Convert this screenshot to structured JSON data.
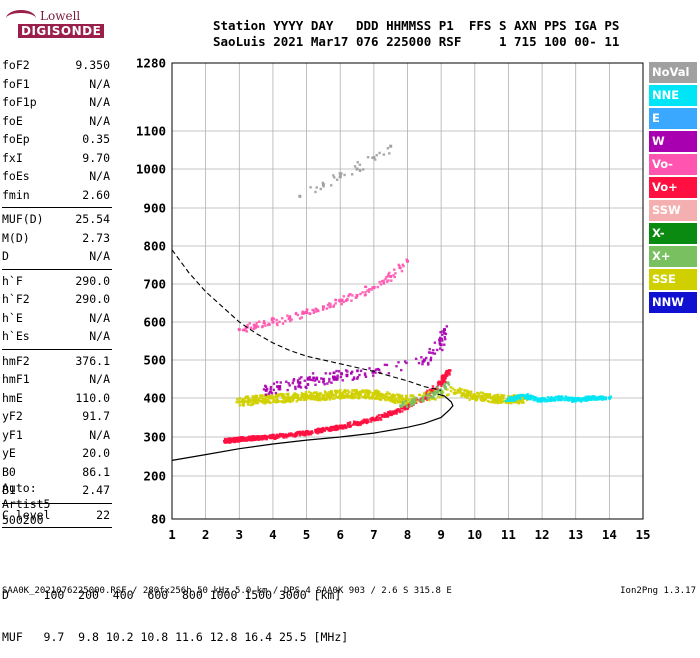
{
  "logo": {
    "line1": "Lowell",
    "line2": "DIGISONDE"
  },
  "header": {
    "labels": "Station YYYY DAY   DDD HHMMSS P1  FFS S AXN PPS IGA PS",
    "values": "SaoLuis 2021 Mar17 076 225000 RSF     1 715 100 00- 11"
  },
  "params": {
    "group1": [
      {
        "k": "foF2",
        "v": "9.350"
      },
      {
        "k": "foF1",
        "v": "N/A"
      },
      {
        "k": "foF1p",
        "v": "N/A"
      },
      {
        "k": "foE",
        "v": "N/A"
      },
      {
        "k": "foEp",
        "v": "0.35"
      },
      {
        "k": "fxI",
        "v": "9.70"
      },
      {
        "k": "foEs",
        "v": "N/A"
      },
      {
        "k": "fmin",
        "v": "2.60"
      }
    ],
    "group2": [
      {
        "k": "MUF(D)",
        "v": "25.54"
      },
      {
        "k": "M(D)",
        "v": "2.73"
      },
      {
        "k": "D",
        "v": "N/A"
      }
    ],
    "group3": [
      {
        "k": "h`F",
        "v": "290.0"
      },
      {
        "k": "h`F2",
        "v": "290.0"
      },
      {
        "k": "h`E",
        "v": "N/A"
      },
      {
        "k": "h`Es",
        "v": "N/A"
      }
    ],
    "group4": [
      {
        "k": "hmF2",
        "v": "376.1"
      },
      {
        "k": "hmF1",
        "v": "N/A"
      },
      {
        "k": "hmE",
        "v": "110.0"
      },
      {
        "k": "yF2",
        "v": "91.7"
      },
      {
        "k": "yF1",
        "v": "N/A"
      },
      {
        "k": "yE",
        "v": "20.0"
      },
      {
        "k": "B0",
        "v": "86.1"
      },
      {
        "k": "B1",
        "v": "2.47"
      }
    ],
    "group5": [
      {
        "k": "C-level",
        "v": "22"
      }
    ]
  },
  "autoscale": {
    "line1": "Auto:",
    "line2": "Artist5",
    "line3": "500200"
  },
  "legend": [
    {
      "label": "NoVal",
      "color": "#a0a0a0"
    },
    {
      "label": "NNE",
      "color": "#00e5f5"
    },
    {
      "label": "E",
      "color": "#3aa8ff"
    },
    {
      "label": "W",
      "color": "#a800b0"
    },
    {
      "label": "Vo-",
      "color": "#ff55b0"
    },
    {
      "label": "Vo+",
      "color": "#ff1040"
    },
    {
      "label": "SSW",
      "color": "#f4b0b0"
    },
    {
      "label": "X-",
      "color": "#0a8a10"
    },
    {
      "label": "X+",
      "color": "#78c060"
    },
    {
      "label": "SSE",
      "color": "#d0d000"
    },
    {
      "label": "NNW",
      "color": "#1010d0"
    }
  ],
  "bottom": {
    "d_row": "D     100  200  400  600  800 1000 1500 3000 [km]",
    "muf_row": "MUF   9.7  9.8 10.2 10.8 11.6 12.8 16.4 25.5 [MHz]"
  },
  "footer": {
    "left": "SAA0K_2021076225000.RSF / 280fx256h 50 kHz 5.0 km / DPS-4 SAA0K 903 / 2.6 S 315.8 E",
    "right": "Ion2Png 1.3.17"
  },
  "chart_data": {
    "type": "scatter",
    "title": "",
    "xlabel": "",
    "ylabel": "",
    "xlim": [
      1,
      15
    ],
    "ylim": [
      80,
      1280
    ],
    "y_scale": "ionogram (linear to 400 km, compressed above)",
    "x_ticks": [
      1,
      2,
      3,
      4,
      5,
      6,
      7,
      8,
      9,
      10,
      11,
      12,
      13,
      14,
      15
    ],
    "y_ticks": [
      80,
      200,
      300,
      400,
      500,
      600,
      700,
      800,
      900,
      1000,
      1100,
      1280
    ],
    "grid": true,
    "legend_position": "right",
    "series": [
      {
        "legend": "Vo+",
        "color": "#ff1040",
        "x": [
          2.6,
          2.8,
          3.0,
          3.3,
          3.6,
          4.0,
          4.5,
          5.0,
          5.5,
          6.0,
          6.5,
          7.0,
          7.5,
          8.0,
          8.5,
          9.0,
          9.2
        ],
        "y": [
          290,
          292,
          294,
          296,
          298,
          300,
          305,
          310,
          318,
          325,
          335,
          345,
          360,
          378,
          400,
          440,
          470
        ]
      },
      {
        "legend": "SSE",
        "color": "#d0d000",
        "x": [
          3.0,
          3.5,
          4.0,
          4.5,
          5.0,
          5.5,
          6.0,
          6.5,
          7.0,
          7.5,
          8.0,
          9.5,
          10.0,
          10.5,
          11.0,
          11.5
        ],
        "y": [
          390,
          395,
          400,
          400,
          405,
          405,
          410,
          410,
          410,
          400,
          395,
          420,
          405,
          400,
          395,
          400
        ]
      },
      {
        "legend": "NNE",
        "color": "#00e5f5",
        "x": [
          11.0,
          11.5,
          12.0,
          12.5,
          13.0,
          13.5,
          14.0
        ],
        "y": [
          395,
          405,
          395,
          400,
          395,
          400,
          400
        ]
      },
      {
        "legend": "W",
        "color": "#a800b0",
        "x": [
          3.8,
          4.2,
          4.8,
          5.3,
          5.8,
          6.2,
          7.0,
          8.5,
          9.0,
          9.1
        ],
        "y": [
          420,
          430,
          440,
          450,
          455,
          460,
          470,
          500,
          540,
          580
        ]
      },
      {
        "legend": "Vo-",
        "color": "#ff55b0",
        "x": [
          3.0,
          3.5,
          4.0,
          4.5,
          5.0,
          5.5,
          6.0,
          6.5,
          7.0,
          7.5,
          8.0
        ],
        "y": [
          580,
          590,
          600,
          610,
          625,
          640,
          655,
          670,
          690,
          720,
          760
        ]
      },
      {
        "legend": "X+",
        "color": "#78c060",
        "x": [
          7.8,
          8.2,
          8.8,
          9.2
        ],
        "y": [
          380,
          390,
          410,
          440
        ]
      },
      {
        "legend": "NoVal",
        "color": "#a0a0a0",
        "x": [
          4.8,
          5.5,
          6.0,
          6.5,
          7.0,
          7.5
        ],
        "y": [
          930,
          960,
          980,
          1000,
          1030,
          1060
        ]
      }
    ],
    "profile_solid": {
      "x": [
        1.0,
        2.0,
        3.0,
        4.0,
        5.0,
        6.0,
        7.0,
        8.0,
        8.5,
        9.0,
        9.25,
        9.35,
        9.3,
        9.1,
        8.9
      ],
      "y": [
        240,
        255,
        270,
        282,
        292,
        300,
        310,
        325,
        335,
        350,
        370,
        380,
        390,
        405,
        410
      ]
    },
    "profile_dashed": {
      "x": [
        1.0,
        1.5,
        2.0,
        2.5,
        3.0,
        3.5,
        4.0,
        4.5,
        5.0,
        6.0,
        7.0,
        8.0,
        8.5,
        9.0
      ],
      "y": [
        790,
        730,
        680,
        640,
        600,
        570,
        545,
        525,
        510,
        490,
        470,
        445,
        430,
        420
      ]
    }
  }
}
